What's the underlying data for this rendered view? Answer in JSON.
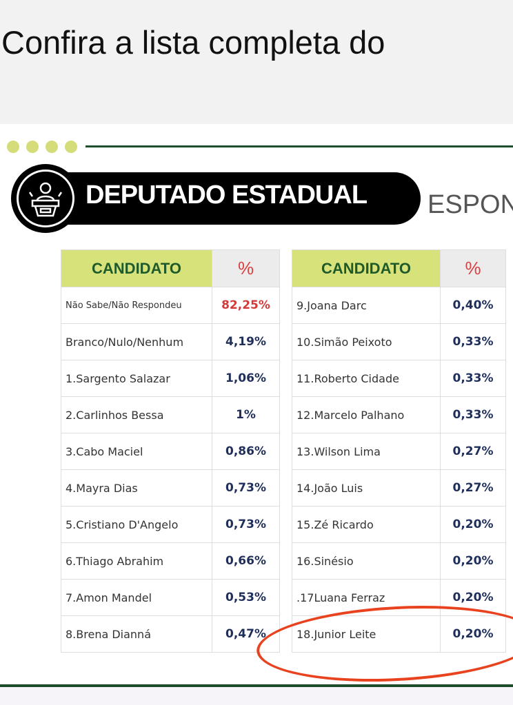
{
  "headline": "Confira a lista completa do",
  "banner": {
    "title": "DEPUTADO ESTADUAL",
    "subtitle": "ESPON"
  },
  "header": {
    "candidate": "CANDIDATO",
    "percent": "%"
  },
  "left_rows": [
    {
      "name": "Não Sabe/Não Respondeu",
      "value": "82,25%"
    },
    {
      "name": "Branco/Nulo/Nenhum",
      "value": "4,19%"
    },
    {
      "name": "1.Sargento Salazar",
      "value": "1,06%"
    },
    {
      "name": "2.Carlinhos Bessa",
      "value": "1%"
    },
    {
      "name": "3.Cabo Maciel",
      "value": "0,86%"
    },
    {
      "name": "4.Mayra Dias",
      "value": "0,73%"
    },
    {
      "name": "5.Cristiano D'Angelo",
      "value": "0,73%"
    },
    {
      "name": "6.Thiago Abrahim",
      "value": "0,66%"
    },
    {
      "name": "7.Amon Mandel",
      "value": "0,53%"
    },
    {
      "name": "8.Brena Dianná",
      "value": "0,47%"
    }
  ],
  "right_rows": [
    {
      "name": "9.Joana Darc",
      "value": "0,40%"
    },
    {
      "name": "10.Simão Peixoto",
      "value": "0,33%"
    },
    {
      "name": "11.Roberto Cidade",
      "value": "0,33%"
    },
    {
      "name": "12.Marcelo Palhano",
      "value": "0,33%"
    },
    {
      "name": "13.Wilson Lima",
      "value": "0,27%"
    },
    {
      "name": "14.João Luis",
      "value": "0,27%"
    },
    {
      "name": "15.Zé Ricardo",
      "value": "0,20%"
    },
    {
      "name": "16.Sinésio",
      "value": "0,20%"
    },
    {
      "name": ".17Luana Ferraz",
      "value": "0,20%"
    },
    {
      "name": "18.Junior Leite",
      "value": "0,20%"
    }
  ]
}
